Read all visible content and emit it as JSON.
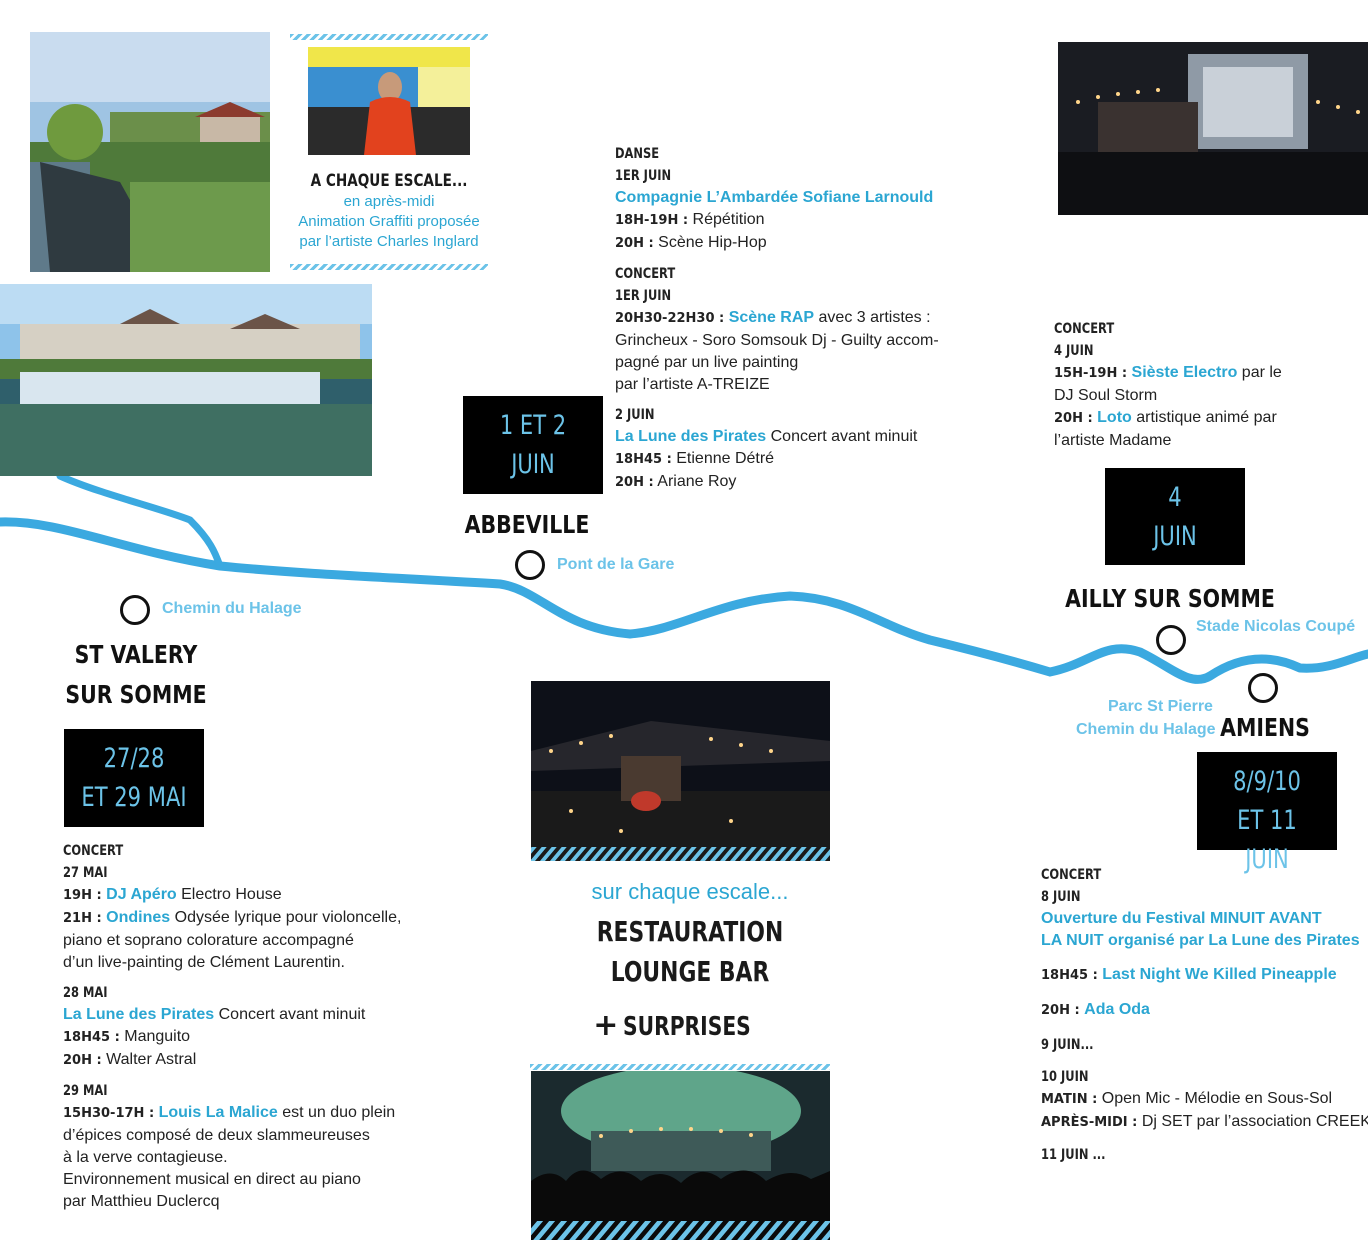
{
  "colors": {
    "accent": "#2ba6d2",
    "river": "#3ba9e0",
    "light_blue": "#6cc3e8",
    "box_bg": "#000000"
  },
  "intro": {
    "title": "A CHAQUE ESCALE...",
    "line1": "en après-midi",
    "line2": "Animation Graffiti proposée",
    "line3": "par l’artiste Charles Inglard"
  },
  "stops": {
    "st_valery": {
      "city1": "ST VALERY",
      "city2": "SUR SOMME",
      "place": "Chemin du Halage",
      "date1": "27/28",
      "date2": "ET 29 MAI"
    },
    "abbeville": {
      "city": "ABBEVILLE",
      "place": "Pont de la Gare",
      "date1": "1 ET 2",
      "date2": "JUIN"
    },
    "ailly": {
      "city": "AILLY SUR SOMME",
      "place": "Stade Nicolas Coupé",
      "date1": "4",
      "date2": "JUIN"
    },
    "amiens": {
      "city": "AMIENS",
      "place1": "Parc St Pierre",
      "place2": "Chemin du Halage",
      "date1": "8/9/10",
      "date2": "ET 11 JUIN"
    }
  },
  "abbeville_prog": {
    "h1": "DANSE",
    "d1": "1ER JUIN",
    "company": "Compagnie L’Ambardée Sofiane Larnould",
    "t1": "18H-19H :",
    "t1_txt": " Répétition",
    "t2": "20H :",
    "t2_txt": " Scène Hip-Hop",
    "h2": "CONCERT",
    "d2": "1ER JUIN",
    "t3": "20H30-22H30 :",
    "t3_hl": "Scène RAP",
    "t3_txt": " avec 3 artistes :",
    "t3_l2": "Grincheux - Soro Somsouk Dj - Guilty accom-",
    "t3_l3": "pagné par un live painting",
    "t3_l4": "par l’artiste A-TREIZE",
    "d3": "2 JUIN",
    "lune": "La Lune des Pirates",
    "lune_txt": " Concert avant minuit",
    "t4": "18H45 :",
    "t4_txt": " Etienne Détré",
    "t5": "20H :",
    "t5_txt": " Ariane Roy"
  },
  "ailly_prog": {
    "h1": "CONCERT",
    "d1": "4 JUIN",
    "t1": "15H-19H :",
    "t1_hl": "Sièste Electro",
    "t1_txt": " par le",
    "t1_l2": "DJ Soul Storm",
    "t2": "20H :",
    "t2_hl": "Loto",
    "t2_txt": " artistique animé par",
    "t2_l2": "l’artiste Madame"
  },
  "stvalery_prog": {
    "h1": "CONCERT",
    "d1": "27 MAI",
    "t1": "19H :",
    "t1_hl": "DJ Apéro",
    "t1_txt": " Electro House",
    "t2": "21H :",
    "t2_hl": "Ondines",
    "t2_txt": " Odysée lyrique pour violoncelle,",
    "t2_l2": "piano et soprano colorature accompagné",
    "t2_l3": "d’un live-painting de Clément Laurentin.",
    "d2": "28 MAI",
    "lune": "La Lune des Pirates",
    "lune_txt": " Concert avant minuit",
    "t3": "18H45 :",
    "t3_txt": " Manguito",
    "t4": "20H :",
    "t4_txt": " Walter Astral",
    "d3": "29 MAI",
    "t5": "15H30-17H :",
    "t5_hl": "Louis La Malice",
    "t5_txt": " est un duo plein",
    "t5_l2": "d’épices composé de deux slammeureuses",
    "t5_l3": "à la verve contagieuse.",
    "t5_l4": "Environnement musical en direct au piano",
    "t5_l5": "par Matthieu Duclercq"
  },
  "amiens_prog": {
    "h1": "CONCERT",
    "d1": "8 JUIN",
    "open1": "Ouverture du Festival MINUIT AVANT",
    "open2": "LA NUIT organisé par La Lune des Pirates",
    "t1": "18H45 :",
    "t1_hl": "Last Night We Killed Pineapple",
    "t2": "20H :",
    "t2_hl": "Ada Oda",
    "d2": "9 JUIN...",
    "d3": "10 JUIN",
    "t3": "MATIN :",
    "t3_txt": " Open Mic - Mélodie en Sous-Sol",
    "t4": "APRÈS-MIDI :",
    "t4_txt": " Dj SET par l’association CREEK",
    "d4": "11 JUIN ..."
  },
  "center": {
    "line1": "sur chaque escale...",
    "line2": "RESTAURATION",
    "line3": "LOUNGE BAR",
    "plus": "+",
    "line4": "SURPRISES"
  }
}
